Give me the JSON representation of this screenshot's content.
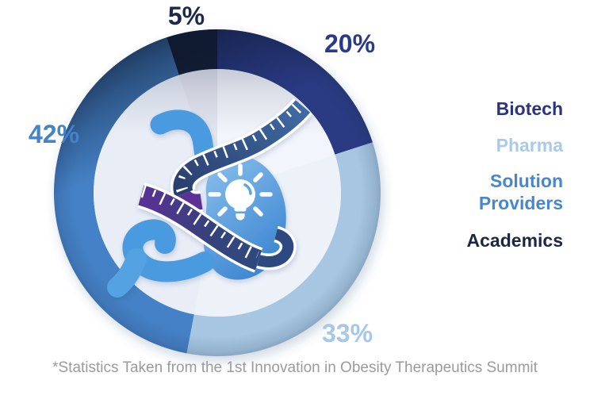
{
  "chart_data": {
    "type": "pie",
    "donut": true,
    "start_angle_deg": 0,
    "direction": "clockwise",
    "unit": "%",
    "categories": [
      "Biotech",
      "Pharma",
      "Solution Providers",
      "Academics"
    ],
    "values": [
      20,
      33,
      42,
      5
    ],
    "colors": [
      "#2A3A84",
      "#A6C6E2",
      "#4581C6",
      "#15223C"
    ],
    "inner_colors": [
      "#F2F5FB",
      "#EDF1F8",
      "#E8EDF6",
      "#E2E6EF"
    ],
    "legend_position": "right"
  },
  "slice_labels": [
    {
      "text": "20%",
      "color": "#2A3A8A"
    },
    {
      "text": "33%",
      "color": "#A7C7E6"
    },
    {
      "text": "42%",
      "color": "#4583C9"
    },
    {
      "text": "5%",
      "color": "#1C2A4A"
    }
  ],
  "legend": {
    "items": [
      {
        "label": "Biotech",
        "color": "#2A3480"
      },
      {
        "label": "Pharma",
        "color": "#A9CBE9"
      },
      {
        "label": "Solution Providers",
        "color": "#4787CD"
      },
      {
        "label": "Academics",
        "color": "#1B2744"
      }
    ]
  },
  "icons": {
    "center": "stomach-with-measuring-tape-and-lightbulb-icon"
  },
  "footer": {
    "note": "*Statistics Taken from the 1st Innovation in Obesity Therapeutics Summit",
    "color": "#9B9B9B"
  }
}
